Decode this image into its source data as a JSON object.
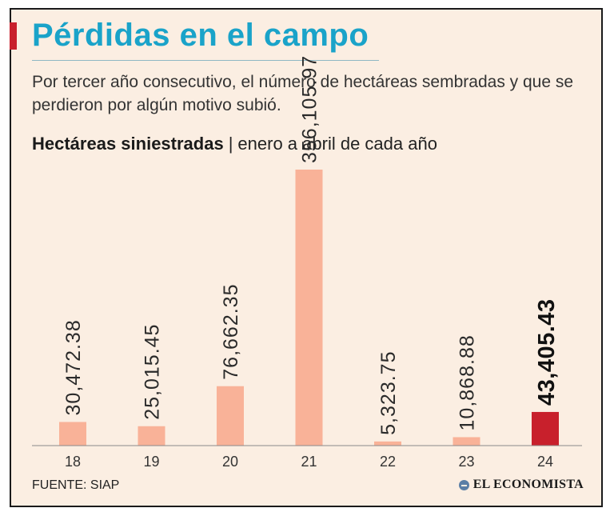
{
  "header": {
    "title": "Pérdidas en el campo",
    "subtitle": "Por tercer año consecutivo, el número de hectáreas sembradas y que se perdieron por algún motivo subió."
  },
  "chart_heading": {
    "bold": "Hectáreas siniestradas",
    "separator": "|",
    "light": "enero a abril de cada año"
  },
  "chart_data": {
    "type": "bar",
    "title": "Hectáreas siniestradas",
    "subtitle": "enero a abril de cada año",
    "xlabel": "",
    "ylabel": "",
    "categories": [
      "18",
      "19",
      "20",
      "21",
      "22",
      "23",
      "24"
    ],
    "values": [
      30472.38,
      25015.45,
      76662.35,
      356105.97,
      5323.75,
      10868.88,
      43405.43
    ],
    "value_labels": [
      "30,472.38",
      "25,015.45",
      "76,662.35",
      "356,105.97",
      "5,323.75",
      "10,868.88",
      "43,405.43"
    ],
    "highlight_index": 6,
    "ylim": [
      0,
      356105.97
    ],
    "grid": false,
    "colors": {
      "bar": "#f9b298",
      "highlight": "#c8202c"
    }
  },
  "footer": {
    "source": "FUENTE: SIAP",
    "brand": "EL ECONOMISTA"
  },
  "colors": {
    "background": "#fbeee2",
    "title": "#1aa3c9",
    "accent": "#c8202c"
  }
}
